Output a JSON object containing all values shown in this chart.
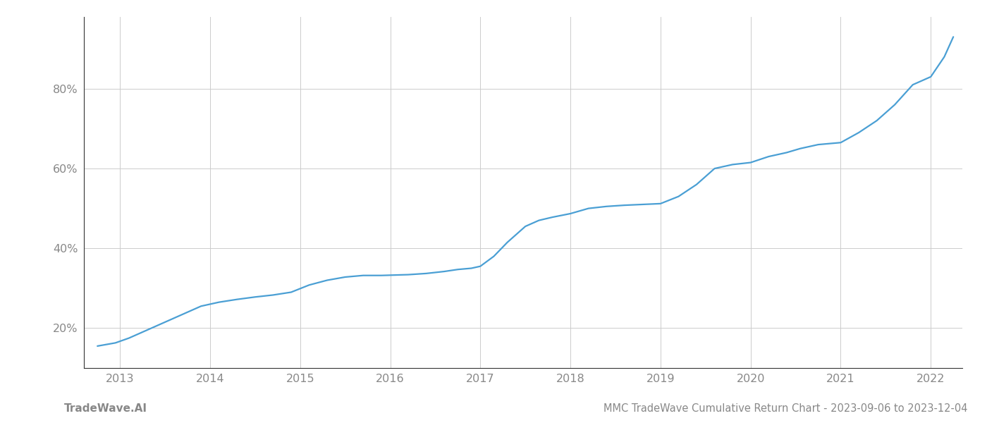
{
  "footer_left": "TradeWave.AI",
  "footer_right": "MMC TradeWave Cumulative Return Chart - 2023-09-06 to 2023-12-04",
  "line_color": "#4a9fd4",
  "background_color": "#ffffff",
  "grid_color": "#cccccc",
  "spine_color": "#333333",
  "text_color": "#888888",
  "line_width": 1.6,
  "xlim": [
    2012.6,
    2022.35
  ],
  "ylim": [
    0.1,
    0.98
  ],
  "yticks": [
    0.2,
    0.4,
    0.6,
    0.8
  ],
  "xticks": [
    2013,
    2014,
    2015,
    2016,
    2017,
    2018,
    2019,
    2020,
    2021,
    2022
  ],
  "x": [
    2012.75,
    2012.95,
    2013.1,
    2013.3,
    2013.5,
    2013.7,
    2013.9,
    2014.1,
    2014.3,
    2014.5,
    2014.7,
    2014.9,
    2015.1,
    2015.3,
    2015.5,
    2015.7,
    2015.9,
    2016.05,
    2016.2,
    2016.4,
    2016.6,
    2016.75,
    2016.9,
    2017.0,
    2017.15,
    2017.3,
    2017.5,
    2017.65,
    2017.8,
    2018.0,
    2018.2,
    2018.4,
    2018.6,
    2018.8,
    2019.0,
    2019.2,
    2019.4,
    2019.5,
    2019.6,
    2019.8,
    2020.0,
    2020.2,
    2020.4,
    2020.55,
    2020.75,
    2021.0,
    2021.2,
    2021.4,
    2021.6,
    2021.8,
    2022.0,
    2022.15,
    2022.25
  ],
  "y": [
    0.155,
    0.163,
    0.175,
    0.195,
    0.215,
    0.235,
    0.255,
    0.265,
    0.272,
    0.278,
    0.283,
    0.29,
    0.308,
    0.32,
    0.328,
    0.332,
    0.332,
    0.333,
    0.334,
    0.337,
    0.342,
    0.347,
    0.35,
    0.355,
    0.38,
    0.415,
    0.455,
    0.47,
    0.478,
    0.487,
    0.5,
    0.505,
    0.508,
    0.51,
    0.512,
    0.53,
    0.56,
    0.58,
    0.6,
    0.61,
    0.615,
    0.63,
    0.64,
    0.65,
    0.66,
    0.665,
    0.69,
    0.72,
    0.76,
    0.81,
    0.83,
    0.88,
    0.93
  ]
}
